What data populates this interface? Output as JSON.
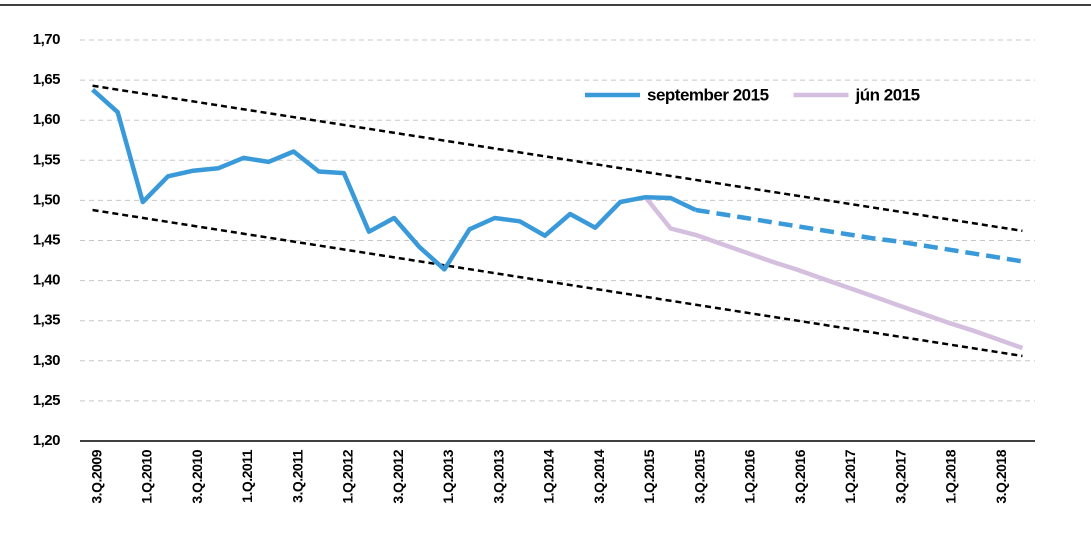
{
  "chart_data": {
    "type": "line",
    "categories": [
      "3.Q.2009",
      null,
      "1.Q.2010",
      null,
      "3.Q.2010",
      null,
      "1.Q.2011",
      null,
      "3.Q.2011",
      null,
      "1.Q.2012",
      null,
      "3.Q.2012",
      null,
      "1.Q.2013",
      null,
      "3.Q.2013",
      null,
      "1.Q.2014",
      null,
      "3.Q.2014",
      null,
      "1.Q.2015",
      null,
      "3.Q.2015",
      null,
      "1.Q.2016",
      null,
      "3.Q.2016",
      null,
      "1.Q.2017",
      null,
      "3.Q.2017",
      null,
      "1.Q.2018",
      null,
      "3.Q.2018",
      null
    ],
    "series": [
      {
        "name": "september 2015",
        "color": "#3a9ad9",
        "dash_from": 24,
        "values": [
          1.638,
          1.61,
          1.498,
          1.53,
          1.537,
          1.54,
          1.553,
          1.548,
          1.561,
          1.536,
          1.534,
          1.461,
          1.478,
          1.442,
          1.414,
          1.464,
          1.478,
          1.474,
          1.456,
          1.483,
          1.466,
          1.498,
          1.504,
          1.503,
          1.488,
          1.483,
          1.478,
          1.473,
          1.468,
          1.463,
          1.458,
          1.453,
          1.449,
          1.444,
          1.439,
          1.434,
          1.429,
          1.424
        ]
      },
      {
        "name": "jún 2015",
        "color": "#d5bfdf",
        "values": [
          null,
          null,
          null,
          null,
          null,
          null,
          null,
          null,
          null,
          null,
          null,
          null,
          null,
          null,
          null,
          null,
          null,
          null,
          null,
          null,
          null,
          null,
          1.504,
          1.465,
          1.457,
          1.446,
          1.435,
          1.424,
          1.414,
          1.403,
          1.392,
          1.381,
          1.37,
          1.359,
          1.348,
          1.338,
          1.327,
          1.316
        ]
      }
    ],
    "trend_lines": [
      {
        "color": "#000000",
        "values": [
          1.643,
          1.462
        ]
      },
      {
        "color": "#000000",
        "values": [
          1.488,
          1.306
        ]
      }
    ],
    "ylim": [
      1.2,
      1.7
    ],
    "yticks": [
      {
        "value": 1.2,
        "label": "1,20"
      },
      {
        "value": 1.25,
        "label": "1,25"
      },
      {
        "value": 1.3,
        "label": "1,30"
      },
      {
        "value": 1.35,
        "label": "1,35"
      },
      {
        "value": 1.4,
        "label": "1,40"
      },
      {
        "value": 1.45,
        "label": "1,45"
      },
      {
        "value": 1.5,
        "label": "1,50"
      },
      {
        "value": 1.55,
        "label": "1,55"
      },
      {
        "value": 1.6,
        "label": "1,60"
      },
      {
        "value": 1.65,
        "label": "1,65"
      },
      {
        "value": 1.7,
        "label": "1,70"
      }
    ],
    "grid": true,
    "legend": "top-right"
  }
}
